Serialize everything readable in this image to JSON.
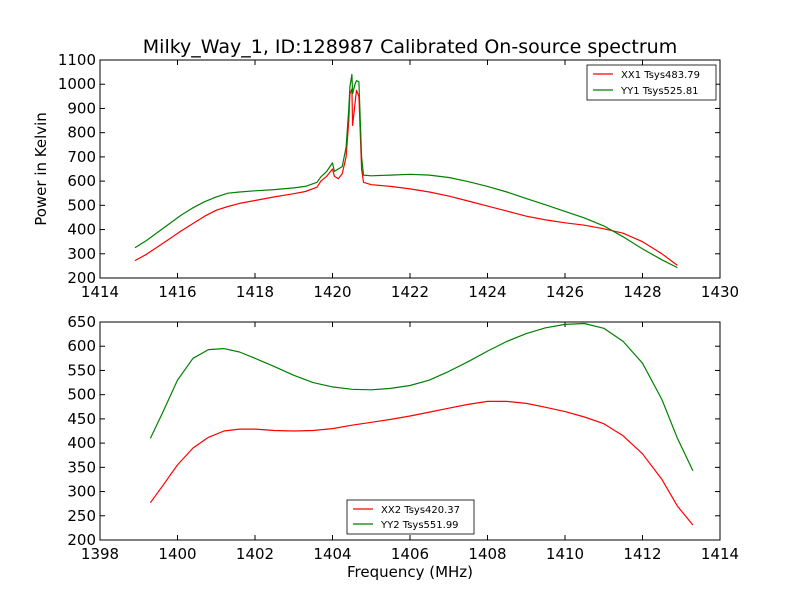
{
  "chart_data": [
    {
      "type": "line",
      "title": "Milky_Way_1, ID:128987 Calibrated On-source spectrum",
      "xlabel": "",
      "ylabel": "Power in Kelvin",
      "xlim": [
        1414,
        1430
      ],
      "ylim": [
        200,
        1100
      ],
      "xticks": [
        1414,
        1416,
        1418,
        1420,
        1422,
        1424,
        1426,
        1428,
        1430
      ],
      "yticks": [
        200,
        300,
        400,
        500,
        600,
        700,
        800,
        900,
        1000,
        1100
      ],
      "grid": false,
      "legend_position": "top-right",
      "series": [
        {
          "name": "XX1 Tsys483.79",
          "color": "#ff0000",
          "points": [
            [
              1414.9,
              272
            ],
            [
              1415.2,
              298
            ],
            [
              1415.5,
              330
            ],
            [
              1415.8,
              362
            ],
            [
              1416.1,
              395
            ],
            [
              1416.4,
              425
            ],
            [
              1416.7,
              455
            ],
            [
              1417.0,
              480
            ],
            [
              1417.3,
              495
            ],
            [
              1417.6,
              508
            ],
            [
              1418.0,
              520
            ],
            [
              1418.5,
              535
            ],
            [
              1419.0,
              548
            ],
            [
              1419.3,
              557
            ],
            [
              1419.6,
              575
            ],
            [
              1419.7,
              600
            ],
            [
              1419.85,
              620
            ],
            [
              1420.0,
              650
            ],
            [
              1420.05,
              620
            ],
            [
              1420.15,
              610
            ],
            [
              1420.25,
              630
            ],
            [
              1420.35,
              700
            ],
            [
              1420.42,
              850
            ],
            [
              1420.45,
              960
            ],
            [
              1420.5,
              980
            ],
            [
              1420.52,
              830
            ],
            [
              1420.58,
              920
            ],
            [
              1420.62,
              975
            ],
            [
              1420.68,
              950
            ],
            [
              1420.75,
              650
            ],
            [
              1420.8,
              595
            ],
            [
              1421.0,
              585
            ],
            [
              1421.5,
              578
            ],
            [
              1422.0,
              568
            ],
            [
              1422.5,
              555
            ],
            [
              1423.0,
              538
            ],
            [
              1423.5,
              518
            ],
            [
              1424.0,
              497
            ],
            [
              1424.5,
              476
            ],
            [
              1425.0,
              455
            ],
            [
              1425.5,
              440
            ],
            [
              1426.0,
              428
            ],
            [
              1426.5,
              418
            ],
            [
              1427.0,
              403
            ],
            [
              1427.5,
              385
            ],
            [
              1428.0,
              350
            ],
            [
              1428.5,
              300
            ],
            [
              1428.9,
              252
            ]
          ]
        },
        {
          "name": "YY1 Tsys525.81",
          "color": "#008000",
          "points": [
            [
              1414.9,
              325
            ],
            [
              1415.2,
              355
            ],
            [
              1415.5,
              390
            ],
            [
              1415.8,
              425
            ],
            [
              1416.1,
              460
            ],
            [
              1416.4,
              490
            ],
            [
              1416.7,
              515
            ],
            [
              1417.0,
              535
            ],
            [
              1417.3,
              550
            ],
            [
              1417.6,
              555
            ],
            [
              1418.0,
              560
            ],
            [
              1418.5,
              565
            ],
            [
              1419.0,
              572
            ],
            [
              1419.3,
              578
            ],
            [
              1419.6,
              595
            ],
            [
              1419.7,
              618
            ],
            [
              1419.85,
              640
            ],
            [
              1420.0,
              675
            ],
            [
              1420.05,
              640
            ],
            [
              1420.15,
              650
            ],
            [
              1420.25,
              660
            ],
            [
              1420.35,
              740
            ],
            [
              1420.42,
              900
            ],
            [
              1420.45,
              990
            ],
            [
              1420.5,
              1040
            ],
            [
              1420.52,
              960
            ],
            [
              1420.58,
              1000
            ],
            [
              1420.62,
              1015
            ],
            [
              1420.68,
              1010
            ],
            [
              1420.75,
              700
            ],
            [
              1420.8,
              625
            ],
            [
              1421.0,
              622
            ],
            [
              1421.5,
              625
            ],
            [
              1422.0,
              628
            ],
            [
              1422.5,
              625
            ],
            [
              1423.0,
              615
            ],
            [
              1423.5,
              598
            ],
            [
              1424.0,
              578
            ],
            [
              1424.5,
              555
            ],
            [
              1425.0,
              528
            ],
            [
              1425.5,
              502
            ],
            [
              1426.0,
              475
            ],
            [
              1426.5,
              448
            ],
            [
              1427.0,
              415
            ],
            [
              1427.5,
              370
            ],
            [
              1428.0,
              320
            ],
            [
              1428.5,
              275
            ],
            [
              1428.9,
              243
            ]
          ]
        }
      ]
    },
    {
      "type": "line",
      "title": "",
      "xlabel": "Frequency (MHz)",
      "ylabel": "",
      "xlim": [
        1398,
        1414
      ],
      "ylim": [
        200,
        650
      ],
      "xticks": [
        1398,
        1400,
        1402,
        1404,
        1406,
        1408,
        1410,
        1412,
        1414
      ],
      "yticks": [
        200,
        250,
        300,
        350,
        400,
        450,
        500,
        550,
        600,
        650
      ],
      "grid": false,
      "legend_position": "bottom-center",
      "series": [
        {
          "name": "XX2 Tsys420.37",
          "color": "#ff0000",
          "points": [
            [
              1399.3,
              277
            ],
            [
              1399.6,
              310
            ],
            [
              1400.0,
              355
            ],
            [
              1400.4,
              390
            ],
            [
              1400.8,
              412
            ],
            [
              1401.2,
              425
            ],
            [
              1401.6,
              429
            ],
            [
              1402.0,
              429
            ],
            [
              1402.5,
              426
            ],
            [
              1403.0,
              425
            ],
            [
              1403.5,
              426
            ],
            [
              1404.0,
              430
            ],
            [
              1404.5,
              437
            ],
            [
              1405.0,
              443
            ],
            [
              1405.5,
              449
            ],
            [
              1406.0,
              456
            ],
            [
              1406.5,
              464
            ],
            [
              1407.0,
              472
            ],
            [
              1407.5,
              480
            ],
            [
              1408.0,
              486
            ],
            [
              1408.5,
              486
            ],
            [
              1409.0,
              482
            ],
            [
              1409.5,
              474
            ],
            [
              1410.0,
              465
            ],
            [
              1410.5,
              454
            ],
            [
              1411.0,
              440
            ],
            [
              1411.5,
              415
            ],
            [
              1412.0,
              378
            ],
            [
              1412.5,
              325
            ],
            [
              1412.9,
              270
            ],
            [
              1413.3,
              231
            ]
          ]
        },
        {
          "name": "YY2 Tsys551.99",
          "color": "#008000",
          "points": [
            [
              1399.3,
              410
            ],
            [
              1399.6,
              460
            ],
            [
              1400.0,
              530
            ],
            [
              1400.4,
              575
            ],
            [
              1400.8,
              593
            ],
            [
              1401.2,
              595
            ],
            [
              1401.6,
              588
            ],
            [
              1402.0,
              575
            ],
            [
              1402.5,
              558
            ],
            [
              1403.0,
              540
            ],
            [
              1403.5,
              525
            ],
            [
              1404.0,
              516
            ],
            [
              1404.5,
              511
            ],
            [
              1405.0,
              510
            ],
            [
              1405.5,
              513
            ],
            [
              1406.0,
              519
            ],
            [
              1406.5,
              530
            ],
            [
              1407.0,
              548
            ],
            [
              1407.5,
              568
            ],
            [
              1408.0,
              590
            ],
            [
              1408.5,
              610
            ],
            [
              1409.0,
              626
            ],
            [
              1409.5,
              638
            ],
            [
              1410.0,
              645
            ],
            [
              1410.5,
              647
            ],
            [
              1411.0,
              637
            ],
            [
              1411.5,
              610
            ],
            [
              1412.0,
              565
            ],
            [
              1412.5,
              490
            ],
            [
              1412.9,
              410
            ],
            [
              1413.3,
              343
            ]
          ]
        }
      ]
    }
  ]
}
